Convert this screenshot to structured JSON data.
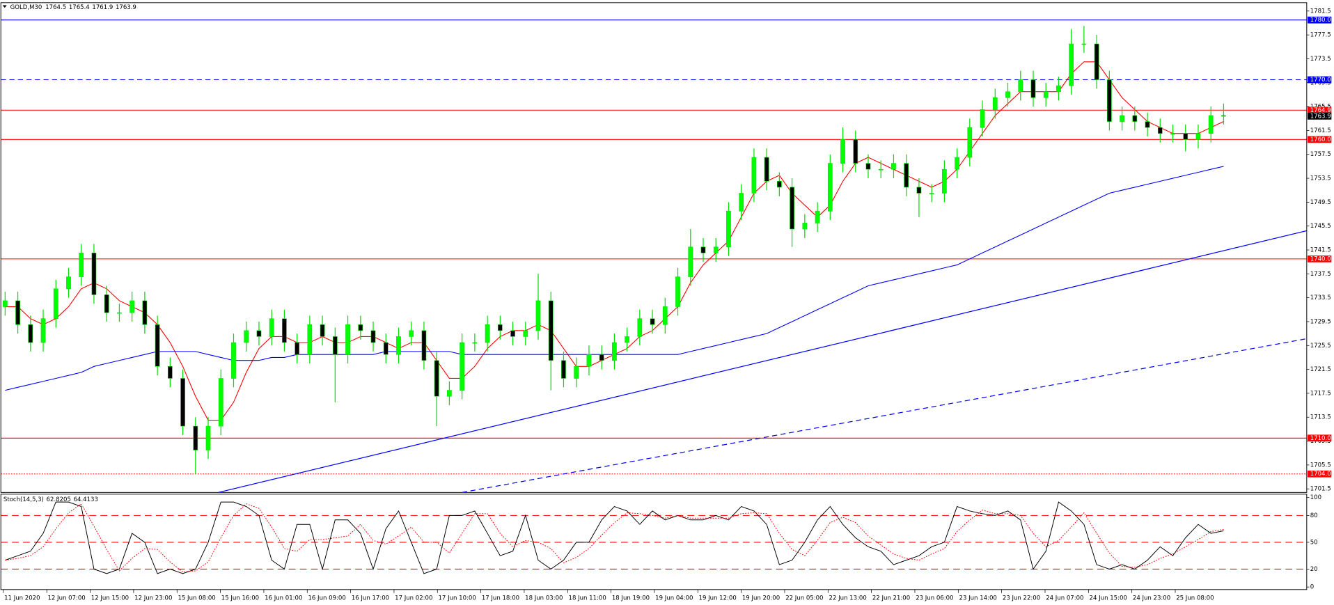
{
  "chart_data": [
    {
      "type": "candlestick",
      "title": "GOLD,M30",
      "header_values": [
        1764.5,
        1765.4,
        1761.9,
        1763.9
      ],
      "x_labels": [
        "11 Jun 2020",
        "12 Jun 07:00",
        "12 Jun 15:00",
        "12 Jun 23:00",
        "15 Jun 08:00",
        "15 Jun 16:00",
        "16 Jun 01:00",
        "16 Jun 09:00",
        "16 Jun 17:00",
        "17 Jun 02:00",
        "17 Jun 10:00",
        "17 Jun 18:00",
        "18 Jun 03:00",
        "18 Jun 11:00",
        "18 Jun 19:00",
        "19 Jun 04:00",
        "19 Jun 12:00",
        "19 Jun 20:00",
        "22 Jun 05:00",
        "22 Jun 13:00",
        "22 Jun 21:00",
        "23 Jun 06:00",
        "23 Jun 14:00",
        "23 Jun 22:00",
        "24 Jun 07:00",
        "24 Jun 15:00",
        "24 Jun 23:00",
        "25 Jun 08:00"
      ],
      "open": [
        1732,
        1733,
        1729,
        1726,
        1730,
        1735,
        1737,
        1741,
        1734,
        1731,
        1731,
        1733,
        1729,
        1722,
        1720,
        1712,
        1708,
        1712,
        1720,
        1726,
        1728,
        1727,
        1730,
        1726,
        1724,
        1729,
        1727,
        1724,
        1729,
        1728,
        1726,
        1724,
        1727,
        1728,
        1723,
        1717,
        1718,
        1726,
        1726,
        1729,
        1728,
        1727,
        1728,
        1733,
        1723,
        1720,
        1722,
        1724,
        1723,
        1726,
        1727,
        1730,
        1729,
        1732,
        1737,
        1742,
        1741,
        1742,
        1748,
        1751,
        1757,
        1753,
        1752,
        1745,
        1746,
        1748,
        1756,
        1760,
        1756,
        1755,
        1755,
        1756,
        1752,
        1751,
        1751,
        1755,
        1757,
        1762,
        1765,
        1767,
        1768,
        1770,
        1767,
        1768,
        1769,
        1776,
        1776,
        1770,
        1763,
        1764,
        1763,
        1762,
        1761,
        1761,
        1760,
        1761,
        1764
      ],
      "high": [
        1734.5,
        1734.5,
        1730.5,
        1731.5,
        1736.5,
        1738.5,
        1742.5,
        1742.5,
        1735.5,
        1732.5,
        1734.5,
        1734.5,
        1730.5,
        1723.5,
        1721.5,
        1713.5,
        1713.5,
        1721.5,
        1727.5,
        1729.5,
        1729.5,
        1731.5,
        1731.5,
        1727.5,
        1730.5,
        1730.5,
        1728.5,
        1730.5,
        1730.5,
        1729.5,
        1727.5,
        1728.5,
        1729.5,
        1729.5,
        1724.5,
        1719.5,
        1727.5,
        1727.5,
        1730.5,
        1730.5,
        1729.5,
        1729.5,
        1737.5,
        1734.5,
        1724.5,
        1723.5,
        1725.5,
        1725.5,
        1727.5,
        1728.5,
        1731.5,
        1731.5,
        1733.5,
        1738.5,
        1745,
        1743.5,
        1743.5,
        1749.5,
        1752.5,
        1758.5,
        1758.5,
        1754.5,
        1753.5,
        1747.5,
        1749.5,
        1757.5,
        1762,
        1761.5,
        1757.5,
        1756.5,
        1757.5,
        1757.5,
        1753.5,
        1752.5,
        1756.5,
        1758.5,
        1763.5,
        1766.5,
        1768.5,
        1769.5,
        1771.5,
        1771.5,
        1769.5,
        1770.5,
        1778.5,
        1779,
        1777.5,
        1771.5,
        1765.5,
        1765.5,
        1764.5,
        1763.5,
        1762.5,
        1762.5,
        1762.5,
        1765.5,
        1766
      ],
      "low": [
        1730.5,
        1727.5,
        1724.5,
        1724.5,
        1728.5,
        1733.5,
        1735.5,
        1732.5,
        1729.5,
        1729.5,
        1729.5,
        1727.5,
        1720.5,
        1718.5,
        1710.5,
        1704,
        1706.5,
        1710.5,
        1718.5,
        1724.5,
        1725.5,
        1725.5,
        1724.5,
        1722.5,
        1722.5,
        1725.5,
        1716,
        1722.5,
        1726.5,
        1724.5,
        1722.5,
        1722.5,
        1725.5,
        1721.5,
        1712,
        1715.5,
        1716.5,
        1724.5,
        1724.5,
        1726.5,
        1725.5,
        1725.5,
        1726.5,
        1718,
        1718.5,
        1718.5,
        1720.5,
        1721.5,
        1721.5,
        1724.5,
        1725.5,
        1727.5,
        1727.5,
        1730.5,
        1735.5,
        1739.5,
        1739.5,
        1740.5,
        1746.5,
        1749.5,
        1751.5,
        1750.5,
        1742,
        1743.5,
        1744.5,
        1746.5,
        1754.5,
        1754.5,
        1753.5,
        1753.5,
        1753.5,
        1750.5,
        1747,
        1749.5,
        1749.5,
        1753.5,
        1755.5,
        1760.5,
        1763.5,
        1765.5,
        1766.5,
        1765.5,
        1765.5,
        1766.5,
        1767.5,
        1774.5,
        1768.5,
        1761.5,
        1761.5,
        1761.5,
        1760.5,
        1759.5,
        1759.5,
        1758,
        1758.5,
        1759.5,
        1762.5
      ],
      "close": [
        1733,
        1729,
        1726,
        1730,
        1735,
        1737,
        1741,
        1734,
        1731,
        1731,
        1733,
        1729,
        1722,
        1720,
        1712,
        1708,
        1712,
        1720,
        1726,
        1728,
        1727,
        1730,
        1726,
        1724,
        1729,
        1727,
        1724,
        1729,
        1728,
        1726,
        1724,
        1727,
        1728,
        1723,
        1717,
        1718,
        1726,
        1726,
        1729,
        1728,
        1727,
        1728,
        1733,
        1723,
        1720,
        1722,
        1724,
        1723,
        1726,
        1727,
        1730,
        1729,
        1732,
        1737,
        1742,
        1741,
        1742,
        1748,
        1751,
        1757,
        1753,
        1752,
        1745,
        1746,
        1748,
        1756,
        1760,
        1756,
        1755,
        1755,
        1756,
        1752,
        1751,
        1751,
        1755,
        1757,
        1762,
        1765,
        1767,
        1768,
        1770,
        1767,
        1768,
        1769,
        1776,
        1776,
        1770,
        1763,
        1764,
        1763,
        1762,
        1761,
        1761,
        1760,
        1761,
        1764,
        1763.9
      ],
      "colors": {
        "up": "#00ff00",
        "down": "#000000",
        "wick": "#00e000",
        "price": "#000000"
      },
      "series": [
        {
          "color": "#ff0000",
          "values": [
            1732,
            1732,
            1730,
            1729,
            1730,
            1732,
            1735,
            1736,
            1735,
            1733,
            1732,
            1731,
            1729,
            1726,
            1722,
            1717,
            1713,
            1713,
            1716,
            1721,
            1725,
            1727,
            1727,
            1726,
            1726,
            1727,
            1726,
            1726,
            1727,
            1727,
            1726,
            1725,
            1726,
            1726,
            1723,
            1720,
            1720,
            1722,
            1725,
            1727,
            1728,
            1728,
            1729,
            1728,
            1725,
            1722,
            1722,
            1723,
            1724,
            1725,
            1727,
            1728,
            1730,
            1732,
            1736,
            1739,
            1741,
            1743,
            1747,
            1751,
            1753,
            1754,
            1751,
            1749,
            1747,
            1749,
            1753,
            1756,
            1757,
            1756,
            1755,
            1754,
            1753,
            1752,
            1753,
            1755,
            1758,
            1761,
            1764,
            1766,
            1768,
            1768,
            1768,
            1768,
            1771,
            1773,
            1773,
            1770,
            1767,
            1765,
            1763,
            1762,
            1761,
            1761,
            1761,
            1762,
            1763
          ]
        },
        {
          "color": "#0000ff",
          "values": [
            1718,
            1718.5,
            1719,
            1719.5,
            1720,
            1720.5,
            1721,
            1722,
            1722.5,
            1723,
            1723.5,
            1724,
            1724.5,
            1724.5,
            1724.5,
            1724.5,
            1724,
            1723.5,
            1723,
            1723,
            1723,
            1723.5,
            1723.5,
            1724,
            1724,
            1724,
            1724,
            1724,
            1724,
            1724,
            1724.5,
            1724.5,
            1724.5,
            1724.5,
            1724.5,
            1724.5,
            1724,
            1724,
            1724,
            1724,
            1724,
            1724,
            1724,
            1724,
            1724,
            1724,
            1724,
            1724,
            1724,
            1724,
            1724,
            1724,
            1724,
            1724,
            1724.5,
            1725,
            1725.5,
            1726,
            1726.5,
            1727,
            1727.5,
            1728.5,
            1729.5,
            1730.5,
            1731.5,
            1732.5,
            1733.5,
            1734.5,
            1735.5,
            1736,
            1736.5,
            1737,
            1737.5,
            1738,
            1738.5,
            1739,
            1740,
            1741,
            1742,
            1743,
            1744,
            1745,
            1746,
            1747,
            1748,
            1749,
            1750,
            1751,
            1751.5,
            1752,
            1752.5,
            1753,
            1753.5,
            1754,
            1754.5,
            1755,
            1755.5
          ]
        }
      ],
      "trendlines": [
        {
          "color": "#0000ff",
          "style": "solid",
          "x": [
            16.8,
            102.7
          ],
          "values": [
            1700.9,
            1744.8
          ]
        },
        {
          "color": "#0000ff",
          "style": "dashed",
          "x": [
            36,
            102.7
          ],
          "values": [
            1700.9,
            1726.7
          ]
        }
      ],
      "levels": [
        {
          "value": 1780,
          "label": "1780.0",
          "color": "#0000ff",
          "style": "solid"
        },
        {
          "value": 1770,
          "label": "1770.0",
          "color": "#0000ff",
          "style": "dashed"
        },
        {
          "value": 1764.9,
          "color": "#ff0000",
          "style": "solid"
        },
        {
          "value": 1760,
          "label": "1760.0",
          "color": "#ff0000",
          "style": "solid"
        },
        {
          "value": 1740,
          "label": "1740.0",
          "color": "#ff0000",
          "style": "solid"
        },
        {
          "value": 1710,
          "label": "1710.0",
          "color": "#ff0000",
          "style": "solid"
        },
        {
          "value": 1704,
          "label": "1704.0",
          "color": "#ff0000",
          "style": "dotted"
        }
      ],
      "ylim": [
        1700.9,
        1782.9
      ],
      "yticks": [
        1701.5,
        1705.5,
        1709.5,
        1713.5,
        1717.5,
        1721.5,
        1725.5,
        1729.5,
        1733.5,
        1737.5,
        1741.5,
        1745.5,
        1749.5,
        1753.5,
        1757.5,
        1761.5,
        1765.5,
        1769.5,
        1773.5,
        1777.5,
        1781.5
      ],
      "grid": false
    },
    {
      "type": "line",
      "title": "Stoch(14,5,3)",
      "series": [
        {
          "color": "#000000",
          "style": "solid",
          "values": [
            30,
            35,
            40,
            60,
            95,
            95,
            90,
            20,
            15,
            20,
            60,
            50,
            15,
            20,
            15,
            20,
            50,
            95,
            95,
            90,
            80,
            30,
            20,
            70,
            70,
            20,
            75,
            75,
            60,
            20,
            65,
            85,
            50,
            15,
            20,
            80,
            80,
            85,
            60,
            35,
            40,
            80,
            30,
            20,
            30,
            50,
            50,
            75,
            90,
            85,
            70,
            85,
            75,
            80,
            75,
            75,
            80,
            75,
            90,
            85,
            70,
            25,
            30,
            50,
            75,
            90,
            70,
            55,
            45,
            40,
            25,
            30,
            35,
            45,
            50,
            90,
            85,
            82,
            80,
            85,
            75,
            20,
            40,
            95,
            85,
            70,
            25,
            20,
            25,
            20,
            30,
            45,
            35,
            55,
            70,
            60,
            62.8205
          ]
        },
        {
          "color": "#ff0000",
          "style": "dotted",
          "values": [
            30,
            32,
            35,
            45,
            65,
            83,
            93,
            68,
            42,
            18,
            32,
            43,
            42,
            28,
            17,
            18,
            28,
            55,
            80,
            93,
            88,
            67,
            43,
            40,
            53,
            53,
            55,
            57,
            70,
            52,
            48,
            57,
            67,
            50,
            50,
            38,
            60,
            82,
            82,
            60,
            45,
            52,
            50,
            43,
            27,
            33,
            43,
            58,
            72,
            83,
            82,
            80,
            77,
            80,
            77,
            77,
            77,
            77,
            82,
            83,
            82,
            60,
            42,
            35,
            52,
            72,
            78,
            72,
            57,
            47,
            37,
            32,
            30,
            37,
            43,
            62,
            75,
            86,
            82,
            82,
            80,
            60,
            45,
            52,
            67,
            83,
            60,
            38,
            23,
            22,
            25,
            32,
            37,
            45,
            53,
            62,
            64.4133
          ]
        }
      ],
      "levels": [
        20,
        50,
        80
      ],
      "level_color": "#ff0000",
      "ylim": [
        0,
        100
      ],
      "yticks": [
        0,
        20,
        50,
        80,
        100
      ]
    }
  ]
}
